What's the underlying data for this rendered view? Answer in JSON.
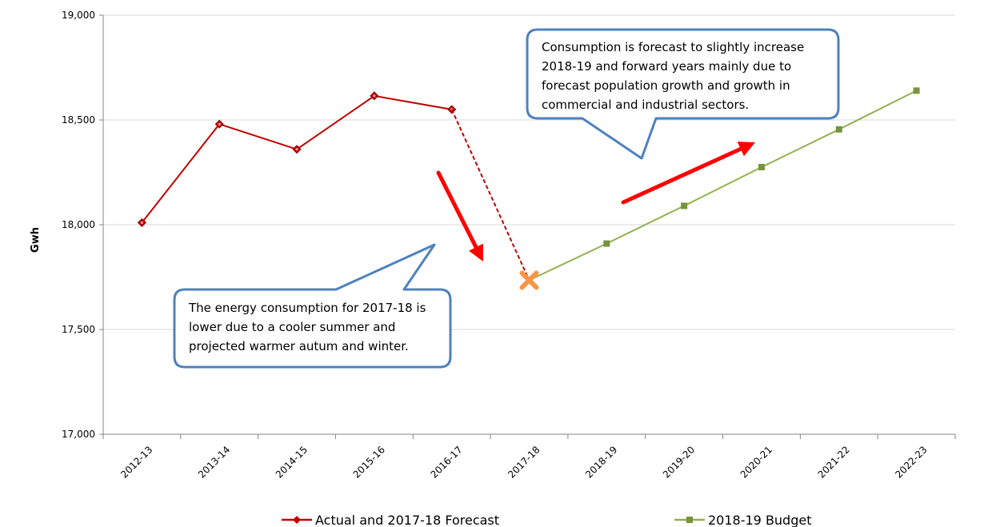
{
  "chart_data": {
    "type": "line",
    "categories": [
      "2012-13",
      "2013-14",
      "2014-15",
      "2015-16",
      "2016-17",
      "2017-18",
      "2018-19",
      "2019-20",
      "2020-21",
      "2021-22",
      "2022-23"
    ],
    "xlabel": "",
    "ylabel": "Gwh",
    "ylim": [
      17000,
      19000
    ],
    "yticks": [
      17000,
      17500,
      18000,
      18500,
      19000
    ],
    "ytick_labels": [
      "17,000",
      "17,500",
      "18,000",
      "18,500",
      "19,000"
    ],
    "grid": true,
    "legend_position": "bottom",
    "series": [
      {
        "name": "Actual and 2017-18 Forecast",
        "color": "#c00000",
        "marker": "diamond",
        "values": [
          18010,
          18480,
          18360,
          18615,
          18550,
          null,
          null,
          null,
          null,
          null,
          null
        ]
      },
      {
        "name": "2018-19 Budget",
        "color": "#92b050",
        "marker": "square",
        "values": [
          null,
          null,
          null,
          null,
          null,
          17735,
          17910,
          18090,
          18275,
          18455,
          18640
        ]
      }
    ],
    "forecast_point": {
      "category": "2017-18",
      "value": 17735,
      "color": "#f79646",
      "marker": "x"
    },
    "dashed_link": {
      "from": "2016-17",
      "to": "2017-18",
      "color": "#c00000"
    },
    "arrow_color": "#ff0000",
    "callout_border_color": "#4f81bd",
    "annotations": [
      {
        "lines": [
          "Consumption is forecast to slightly increase",
          "2018-19 and forward years mainly due to",
          "forecast population growth and growth in",
          "commercial and industrial sectors."
        ]
      },
      {
        "lines": [
          "The energy consumption for 2017-18  is",
          "lower due to a cooler summer and",
          "projected warmer autum and winter."
        ]
      }
    ]
  }
}
